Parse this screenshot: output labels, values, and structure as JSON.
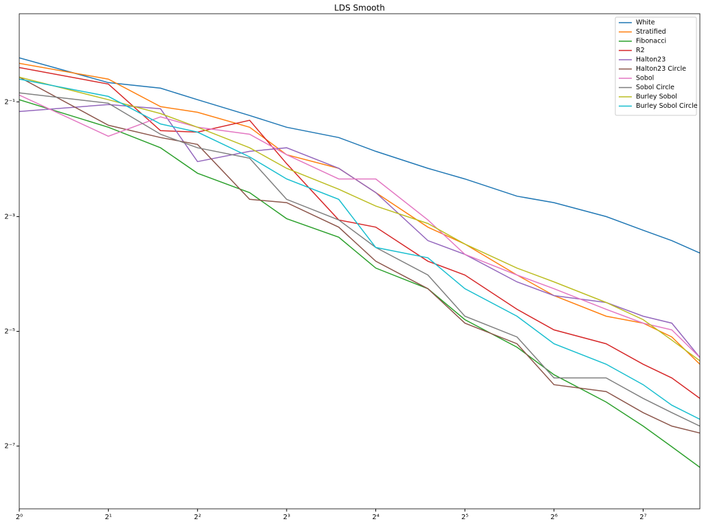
{
  "chart_data": {
    "type": "line",
    "title": "LDS Smooth",
    "xscale": "log2",
    "yscale": "log2",
    "xlim": [
      1,
      199
    ],
    "ylim": [
      0.00366,
      1.45
    ],
    "xticks": [
      {
        "value": 1,
        "label": "2⁰"
      },
      {
        "value": 2,
        "label": "2¹"
      },
      {
        "value": 4,
        "label": "2²"
      },
      {
        "value": 8,
        "label": "2³"
      },
      {
        "value": 16,
        "label": "2⁴"
      },
      {
        "value": 32,
        "label": "2⁵"
      },
      {
        "value": 64,
        "label": "2⁶"
      },
      {
        "value": 128,
        "label": "2⁷"
      }
    ],
    "yticks": [
      {
        "value": 0.5,
        "label": "2⁻¹"
      },
      {
        "value": 0.125,
        "label": "2⁻³"
      },
      {
        "value": 0.03125,
        "label": "2⁻⁵"
      },
      {
        "value": 0.0078125,
        "label": "2⁻⁷"
      }
    ],
    "legend": "upper right",
    "x": [
      1,
      2,
      3,
      4,
      6,
      8,
      12,
      16,
      24,
      32,
      48,
      64,
      96,
      128,
      160,
      199
    ],
    "series": [
      {
        "name": "White",
        "color": "#1f77b4",
        "values": [
          0.851,
          0.631,
          0.59,
          0.513,
          0.424,
          0.368,
          0.325,
          0.275,
          0.224,
          0.197,
          0.16,
          0.148,
          0.125,
          0.106,
          0.0935,
          0.0805
        ]
      },
      {
        "name": "Stratified",
        "color": "#ff7f0e",
        "values": [
          0.796,
          0.658,
          0.472,
          0.441,
          0.368,
          0.264,
          0.224,
          0.167,
          0.11,
          0.0897,
          0.0617,
          0.0481,
          0.0375,
          0.0345,
          0.0292,
          0.021
        ]
      },
      {
        "name": "Fibonacci",
        "color": "#2ca02c",
        "values": [
          0.513,
          0.368,
          0.287,
          0.211,
          0.167,
          0.122,
          0.0975,
          0.0671,
          0.0523,
          0.036,
          0.0258,
          0.0185,
          0.0133,
          0.00995,
          0.00775,
          0.00604
        ]
      },
      {
        "name": "R2",
        "color": "#d62728",
        "values": [
          0.757,
          0.62,
          0.353,
          0.347,
          0.4,
          0.237,
          0.12,
          0.11,
          0.0729,
          0.0617,
          0.0408,
          0.0318,
          0.0269,
          0.021,
          0.0178,
          0.0139
        ]
      },
      {
        "name": "Halton23",
        "color": "#9467bd",
        "values": [
          0.445,
          0.484,
          0.46,
          0.243,
          0.275,
          0.287,
          0.224,
          0.167,
          0.0935,
          0.0792,
          0.0568,
          0.0481,
          0.0443,
          0.0375,
          0.0345,
          0.0228
        ]
      },
      {
        "name": "Halton23 Circle",
        "color": "#8c564b",
        "values": [
          0.674,
          0.377,
          0.325,
          0.299,
          0.154,
          0.148,
          0.11,
          0.0729,
          0.0523,
          0.0345,
          0.0269,
          0.0164,
          0.0151,
          0.0117,
          0.00995,
          0.00915
        ]
      },
      {
        "name": "Sobol",
        "color": "#e377c2",
        "values": [
          0.543,
          0.33,
          0.417,
          0.368,
          0.338,
          0.264,
          0.197,
          0.197,
          0.12,
          0.0792,
          0.0617,
          0.0523,
          0.0408,
          0.0345,
          0.0318,
          0.0228
        ]
      },
      {
        "name": "Sobol Circle",
        "color": "#7f7f7f",
        "values": [
          0.557,
          0.492,
          0.338,
          0.287,
          0.253,
          0.154,
          0.12,
          0.0861,
          0.0617,
          0.0375,
          0.0292,
          0.0178,
          0.0178,
          0.0139,
          0.0117,
          0.00995
        ]
      },
      {
        "name": "Burley Sobol",
        "color": "#bcbd22",
        "values": [
          0.674,
          0.513,
          0.434,
          0.368,
          0.287,
          0.224,
          0.174,
          0.142,
          0.115,
          0.0897,
          0.0671,
          0.0568,
          0.0443,
          0.036,
          0.0281,
          0.0219
        ]
      },
      {
        "name": "Burley Sobol Circle",
        "color": "#17becf",
        "values": [
          0.658,
          0.534,
          0.383,
          0.347,
          0.257,
          0.197,
          0.154,
          0.0861,
          0.076,
          0.0523,
          0.0375,
          0.0269,
          0.021,
          0.0164,
          0.0128,
          0.0108
        ]
      }
    ]
  }
}
